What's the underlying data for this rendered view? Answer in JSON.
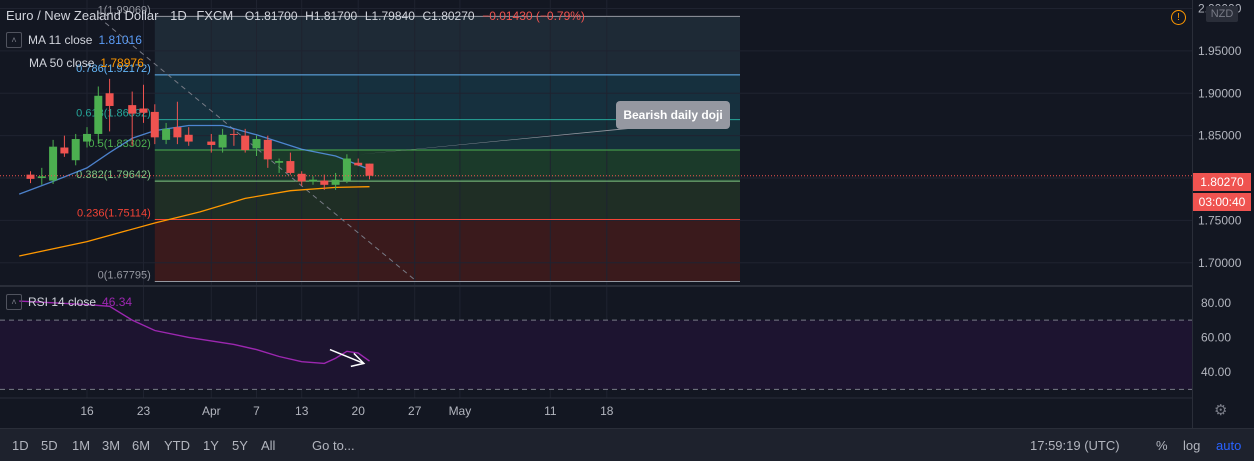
{
  "header": {
    "symbol": "Euro / New Zealand Dollar",
    "interval": "1D",
    "source": "FXCM",
    "open": "O1.81700",
    "high": "H1.81700",
    "low": "L1.79840",
    "close": "C1.80270",
    "change": "−0.01430 (−0.79%)"
  },
  "indicators": {
    "ma11_label": "MA 11 close",
    "ma11_value": "1.81016",
    "ma50_label": "MA 50 close",
    "ma50_value": "1.78976",
    "rsi_label": "RSI 14 close",
    "rsi_value": "46.34"
  },
  "currency_badge": "NZD",
  "alert_icon": "!",
  "price_tag": "1.80270",
  "countdown_tag": "03:00:40",
  "annotation": "Bearish daily doji",
  "settings_icon": "gear-icon",
  "bottom_bar": {
    "ranges": [
      "1D",
      "5D",
      "1M",
      "3M",
      "6M",
      "YTD",
      "1Y",
      "5Y",
      "All"
    ],
    "goto": "Go to...",
    "clock": "17:59:19 (UTC)",
    "percent": "%",
    "log": "log",
    "auto": "auto"
  },
  "colors": {
    "background": "#131722",
    "up": "#4caf50",
    "down": "#ef5350",
    "ma11": "#5b9cf6",
    "ma50": "#ff9800",
    "rsi": "#9c27b0",
    "auto": "#2962ff"
  },
  "chart_data": {
    "type": "candlestick",
    "price_axis": {
      "range": [
        1.675,
        2.01
      ],
      "ticks": [
        "2.00000",
        "1.95000",
        "1.90000",
        "1.85000",
        "1.80000",
        "1.75000",
        "1.70000"
      ],
      "tick_values": [
        2.0,
        1.95,
        1.9,
        1.85,
        1.8,
        1.75,
        1.7
      ]
    },
    "rsi_axis": {
      "range": [
        25,
        88
      ],
      "ticks": [
        "80.00",
        "60.00",
        "40.00"
      ],
      "tick_values": [
        80,
        60,
        40
      ],
      "bands": [
        70,
        30
      ]
    },
    "time_axis": {
      "labels": [
        "16",
        "23",
        "Apr",
        "7",
        "13",
        "20",
        "27",
        "May",
        "11",
        "18"
      ],
      "day_index": [
        0,
        5,
        11,
        15,
        19,
        24,
        29,
        33,
        41,
        46
      ]
    },
    "fibonacci": [
      {
        "label": "0.786(1.92172)",
        "value": 1.92172
      },
      {
        "label": "0.618(1.86892)",
        "value": 1.86892
      },
      {
        "label": "0.5(1.83302)",
        "value": 1.83302
      },
      {
        "label": "0.382(1.79642)",
        "value": 1.79642
      },
      {
        "label": "0.236(1.75114)",
        "value": 1.75114
      },
      {
        "label": "0(1.67795)",
        "value": 1.67795
      },
      {
        "label": "1(1.99069)",
        "value": 1.99069
      }
    ],
    "candles": [
      {
        "d": -5,
        "o": 1.804,
        "h": 1.808,
        "l": 1.794,
        "c": 1.799
      },
      {
        "d": -4,
        "o": 1.8,
        "h": 1.812,
        "l": 1.792,
        "c": 1.802
      },
      {
        "d": -3,
        "o": 1.797,
        "h": 1.845,
        "l": 1.793,
        "c": 1.837
      },
      {
        "d": -2,
        "o": 1.836,
        "h": 1.85,
        "l": 1.825,
        "c": 1.829
      },
      {
        "d": -1,
        "o": 1.821,
        "h": 1.852,
        "l": 1.815,
        "c": 1.846
      },
      {
        "d": 0,
        "o": 1.843,
        "h": 1.86,
        "l": 1.836,
        "c": 1.852
      },
      {
        "d": 1,
        "o": 1.852,
        "h": 1.908,
        "l": 1.84,
        "c": 1.897
      },
      {
        "d": 2,
        "o": 1.9,
        "h": 1.917,
        "l": 1.855,
        "c": 1.885
      },
      {
        "d": 4,
        "o": 1.886,
        "h": 1.902,
        "l": 1.838,
        "c": 1.876
      },
      {
        "d": 5,
        "o": 1.882,
        "h": 1.91,
        "l": 1.865,
        "c": 1.877
      },
      {
        "d": 6,
        "o": 1.878,
        "h": 1.887,
        "l": 1.84,
        "c": 1.848
      },
      {
        "d": 7,
        "o": 1.845,
        "h": 1.865,
        "l": 1.84,
        "c": 1.858
      },
      {
        "d": 8,
        "o": 1.86,
        "h": 1.89,
        "l": 1.84,
        "c": 1.848
      },
      {
        "d": 9,
        "o": 1.851,
        "h": 1.86,
        "l": 1.838,
        "c": 1.843
      },
      {
        "d": 11,
        "o": 1.843,
        "h": 1.852,
        "l": 1.83,
        "c": 1.839
      },
      {
        "d": 12,
        "o": 1.836,
        "h": 1.858,
        "l": 1.83,
        "c": 1.851
      },
      {
        "d": 13,
        "o": 1.852,
        "h": 1.858,
        "l": 1.838,
        "c": 1.851
      },
      {
        "d": 14,
        "o": 1.85,
        "h": 1.858,
        "l": 1.83,
        "c": 1.833
      },
      {
        "d": 15,
        "o": 1.835,
        "h": 1.85,
        "l": 1.826,
        "c": 1.846
      },
      {
        "d": 16,
        "o": 1.845,
        "h": 1.85,
        "l": 1.812,
        "c": 1.822
      },
      {
        "d": 17,
        "o": 1.818,
        "h": 1.823,
        "l": 1.806,
        "c": 1.82
      },
      {
        "d": 18,
        "o": 1.82,
        "h": 1.83,
        "l": 1.804,
        "c": 1.806
      },
      {
        "d": 19,
        "o": 1.805,
        "h": 1.808,
        "l": 1.791,
        "c": 1.796
      },
      {
        "d": 20,
        "o": 1.796,
        "h": 1.802,
        "l": 1.792,
        "c": 1.798
      },
      {
        "d": 21,
        "o": 1.797,
        "h": 1.804,
        "l": 1.786,
        "c": 1.792
      },
      {
        "d": 22,
        "o": 1.792,
        "h": 1.806,
        "l": 1.786,
        "c": 1.798
      },
      {
        "d": 23,
        "o": 1.797,
        "h": 1.828,
        "l": 1.794,
        "c": 1.823
      },
      {
        "d": 24,
        "o": 1.818,
        "h": 1.823,
        "l": 1.814,
        "c": 1.815
      },
      {
        "d": 25,
        "o": 1.817,
        "h": 1.817,
        "l": 1.7984,
        "c": 1.8027
      }
    ],
    "ma11": [
      [
        -6,
        1.781
      ],
      [
        -3,
        1.796
      ],
      [
        0,
        1.812
      ],
      [
        2,
        1.83
      ],
      [
        4,
        1.847
      ],
      [
        6,
        1.856
      ],
      [
        9,
        1.862
      ],
      [
        12,
        1.862
      ],
      [
        15,
        1.851
      ],
      [
        19,
        1.834
      ],
      [
        22,
        1.826
      ],
      [
        25,
        1.8102
      ]
    ],
    "ma50": [
      [
        -6,
        1.708
      ],
      [
        0,
        1.725
      ],
      [
        6,
        1.747
      ],
      [
        10,
        1.76
      ],
      [
        14,
        1.776
      ],
      [
        18,
        1.785
      ],
      [
        22,
        1.789
      ],
      [
        25,
        1.7898
      ]
    ],
    "trendline": [
      [
        1,
        1.99
      ],
      [
        29,
        1.68
      ]
    ],
    "rsi": [
      [
        -6,
        81
      ],
      [
        -3,
        80
      ],
      [
        0,
        79
      ],
      [
        2,
        78
      ],
      [
        4,
        70
      ],
      [
        6,
        64
      ],
      [
        9,
        60
      ],
      [
        11,
        58
      ],
      [
        13,
        56
      ],
      [
        15,
        53
      ],
      [
        17,
        49
      ],
      [
        19,
        46
      ],
      [
        21,
        45
      ],
      [
        22,
        48
      ],
      [
        23,
        52
      ],
      [
        24,
        51
      ],
      [
        25,
        46.34
      ]
    ],
    "arrow": [
      [
        21.5,
        53
      ],
      [
        24.5,
        45
      ]
    ]
  }
}
